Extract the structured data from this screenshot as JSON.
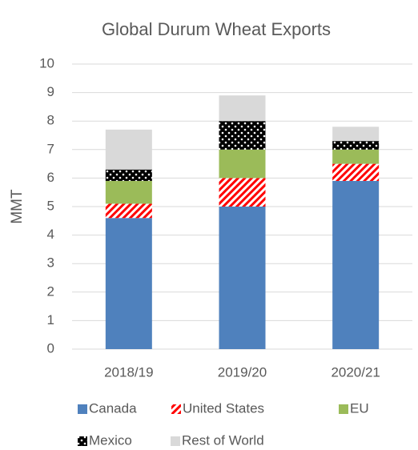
{
  "chart_data": {
    "type": "stacked_bar",
    "title": "Global Durum Wheat Exports",
    "y_label": "MMT",
    "categories": [
      "2018/19",
      "2019/20",
      "2020/21"
    ],
    "series": [
      {
        "name": "Canada",
        "color": "#4f81bd",
        "values": [
          4.6,
          5.0,
          5.9
        ]
      },
      {
        "name": "United States",
        "color": "#ff0000",
        "pattern": "hatch",
        "values": [
          0.5,
          1.0,
          0.6
        ]
      },
      {
        "name": "EU",
        "color": "#9bbb59",
        "values": [
          0.8,
          1.0,
          0.5
        ]
      },
      {
        "name": "Mexico",
        "color": "#000000",
        "pattern": "dots",
        "values": [
          0.4,
          1.0,
          0.3
        ]
      },
      {
        "name": "Rest of World",
        "color": "#d9d9d9",
        "values": [
          1.4,
          0.9,
          0.5
        ]
      }
    ],
    "ylim": [
      0,
      10
    ],
    "yticks": [
      0,
      1,
      2,
      3,
      4,
      5,
      6,
      7,
      8,
      9,
      10
    ],
    "grid": true,
    "legend": "bottom"
  }
}
